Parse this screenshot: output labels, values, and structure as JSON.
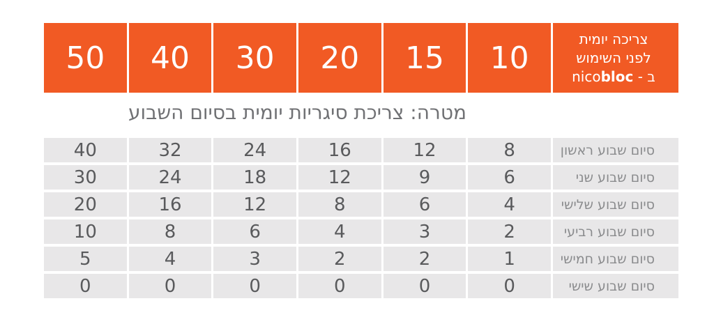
{
  "colors": {
    "orange": "#F15A24",
    "header_text": "#FFFFFF",
    "cell_bg": "#E8E7E8",
    "value_text": "#595A5C",
    "label_text": "#8A8B8D",
    "title_text": "#707174"
  },
  "header": {
    "label_line1": "צריכה יומית",
    "label_line2": "לפני השימוש",
    "label_line3_prefix": "ב - ",
    "brand_normal": "nico",
    "brand_bold": "bloc"
  },
  "chart_data": {
    "type": "table",
    "layout_direction": "rtl",
    "title": "מטרה: צריכת סיגריות יומית בסיום השבוע",
    "columns_header_label": "צריכה יומית לפני השימוש ב - nicobloc",
    "columns_before_use": [
      50,
      40,
      30,
      20,
      15,
      10
    ],
    "rows": [
      {
        "label": "סיום שבוע ראשון",
        "values": [
          40,
          32,
          24,
          16,
          12,
          8
        ]
      },
      {
        "label": "סיום שבוע שני",
        "values": [
          30,
          24,
          18,
          12,
          9,
          6
        ]
      },
      {
        "label": "סיום שבוע שלישי",
        "values": [
          20,
          16,
          12,
          8,
          6,
          4
        ]
      },
      {
        "label": "סיום שבוע רביעי",
        "values": [
          10,
          8,
          6,
          4,
          3,
          2
        ]
      },
      {
        "label": "סיום שבוע חמישי",
        "values": [
          5,
          4,
          3,
          2,
          2,
          1
        ]
      },
      {
        "label": "סיום שבוע שישי",
        "values": [
          0,
          0,
          0,
          0,
          0,
          0
        ]
      }
    ]
  }
}
